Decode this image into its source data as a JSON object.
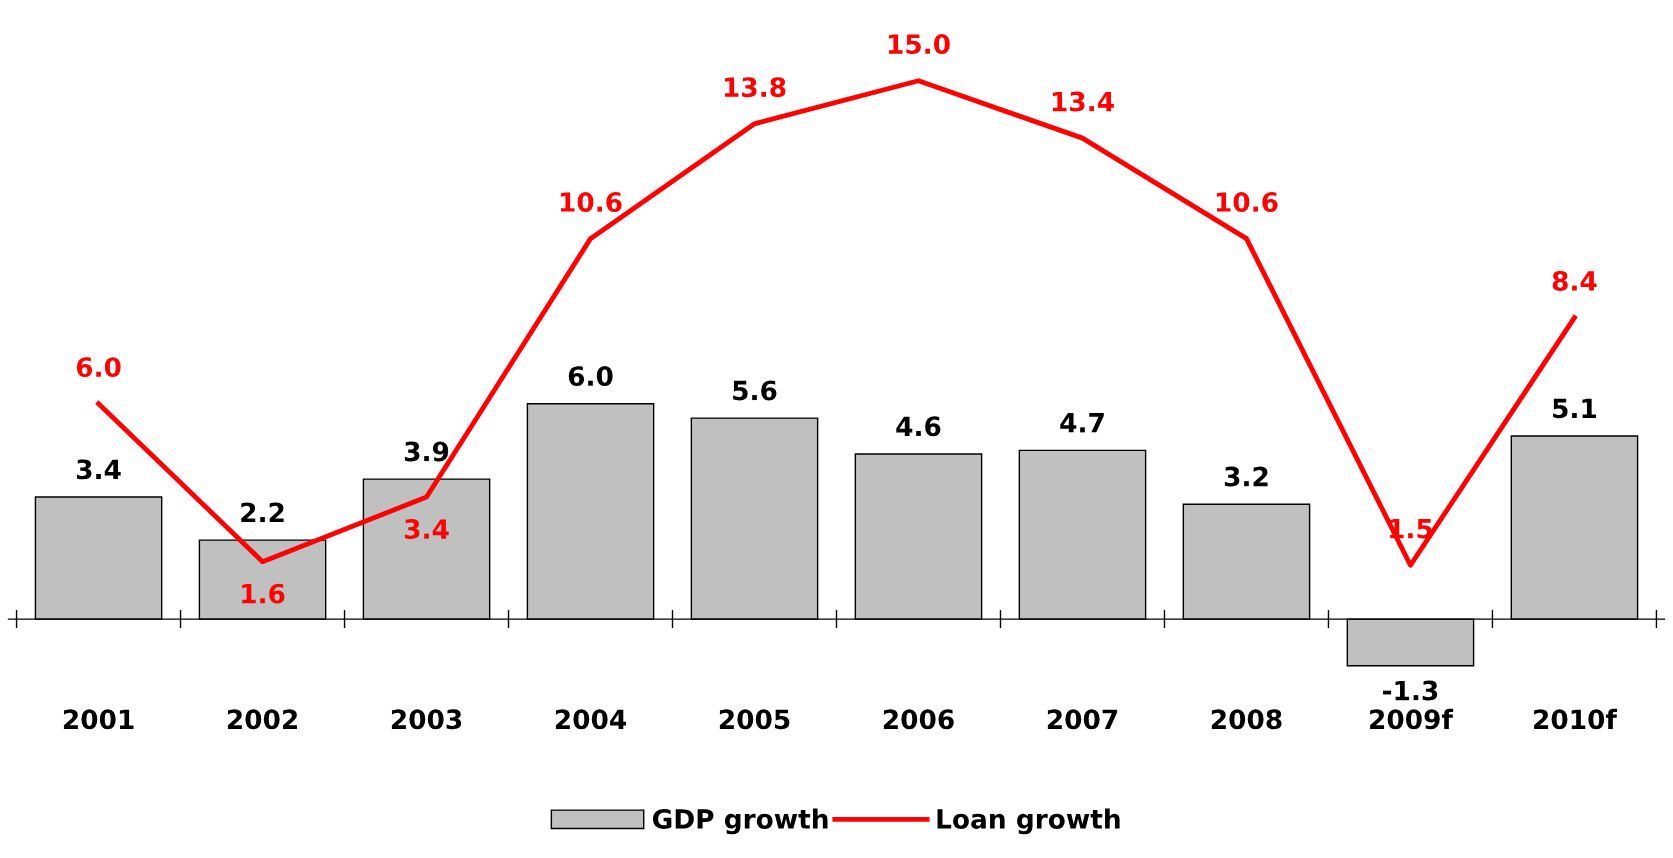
{
  "chart_data": {
    "type": "bar",
    "categories": [
      "2001",
      "2002",
      "2003",
      "2004",
      "2005",
      "2006",
      "2007",
      "2008",
      "2009f",
      "2010f"
    ],
    "series": [
      {
        "name": "GDP growth",
        "color": "#c0c0c0",
        "values": [
          3.4,
          2.2,
          3.9,
          6.0,
          5.6,
          4.6,
          4.7,
          3.2,
          -1.3,
          5.1
        ],
        "value_labels": [
          "3.4",
          "2.2",
          "3.9",
          "6.0",
          "5.6",
          "4.6",
          "4.7",
          "3.2",
          "-1.3",
          "5.1"
        ]
      },
      {
        "name": "Loan growth",
        "type": "line",
        "color": "#ff0000",
        "values": [
          6.0,
          1.6,
          3.4,
          10.6,
          13.8,
          15.0,
          13.4,
          10.6,
          1.5,
          8.4
        ],
        "value_labels": [
          "6.0",
          "1.6",
          "3.4",
          "10.6",
          "13.8",
          "15.0",
          "13.4",
          "10.6",
          "1.5",
          "8.4"
        ]
      }
    ],
    "legend": "bottom"
  }
}
